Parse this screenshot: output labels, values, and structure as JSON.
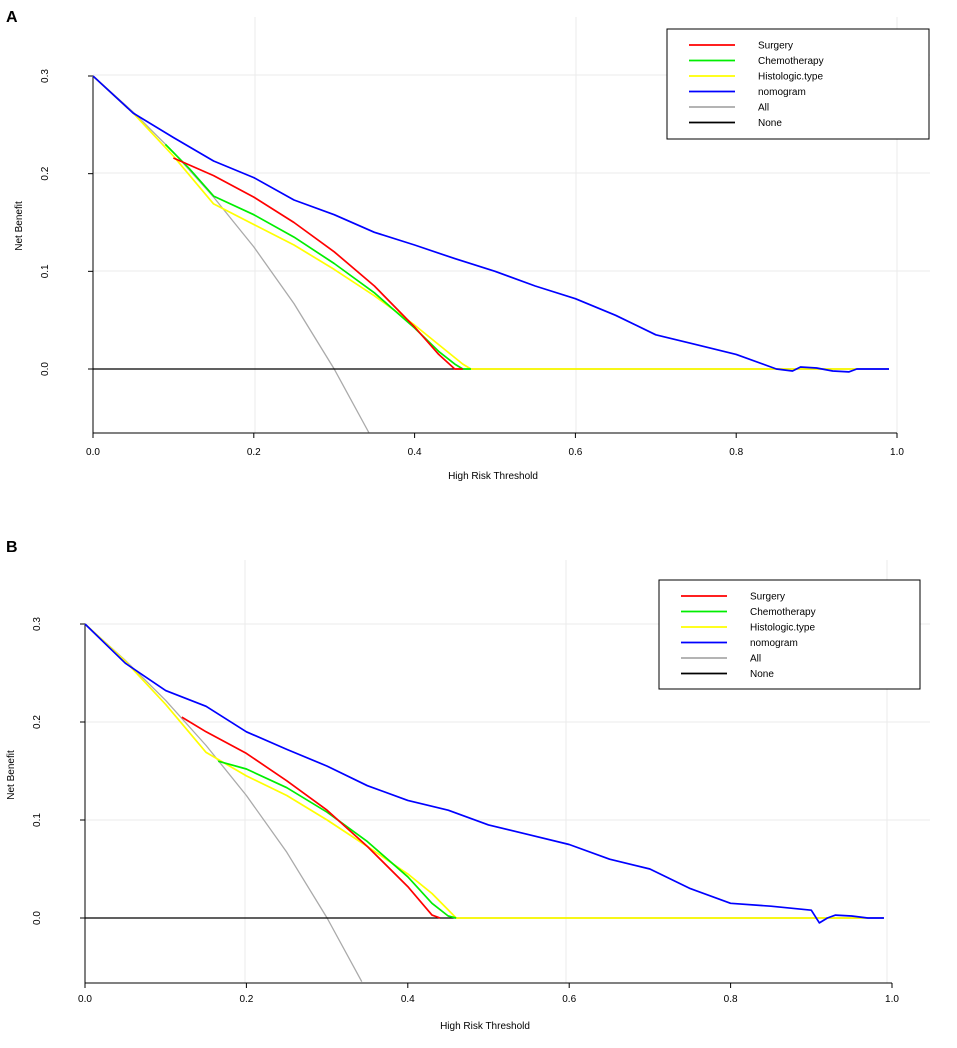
{
  "colors": {
    "Surgery": "#ff0000",
    "Chemotherapy": "#00ee00",
    "Histologic.type": "#ffff00",
    "nomogram": "#0000ff",
    "All": "#aaaaaa",
    "None": "#000000",
    "grid": "#ebebeb"
  },
  "chart_data": [
    {
      "panel": "A",
      "type": "line",
      "xlabel": "High Risk Threshold",
      "ylabel": "Net Benefit",
      "xlim": [
        0,
        1.0
      ],
      "ylim": [
        -0.065,
        0.3
      ],
      "xticks": [
        "0.0",
        "0.2",
        "0.4",
        "0.6",
        "0.8",
        "1.0"
      ],
      "yticks": [
        "0.0",
        "0.1",
        "0.2",
        "0.3"
      ],
      "legend": [
        "Surgery",
        "Chemotherapy",
        "Histologic.type",
        "nomogram",
        "All",
        "None"
      ],
      "series": [
        {
          "name": "All",
          "x": [
            0,
            0.05,
            0.1,
            0.15,
            0.2,
            0.25,
            0.3,
            0.343
          ],
          "y": [
            0.3,
            0.263,
            0.222,
            0.176,
            0.125,
            0.067,
            0.0,
            -0.065
          ]
        },
        {
          "name": "None",
          "x": [
            0,
            0.99
          ],
          "y": [
            0,
            0
          ]
        },
        {
          "name": "Histologic.type",
          "x": [
            0,
            0.05,
            0.1,
            0.15,
            0.2,
            0.25,
            0.3,
            0.35,
            0.4,
            0.43,
            0.46,
            0.47,
            0.6,
            0.8,
            0.95
          ],
          "y": [
            0.3,
            0.262,
            0.218,
            0.169,
            0.148,
            0.127,
            0.102,
            0.075,
            0.045,
            0.025,
            0.005,
            0.0,
            0.0,
            0.0,
            0.0
          ]
        },
        {
          "name": "Chemotherapy",
          "x": [
            0.09,
            0.12,
            0.15,
            0.2,
            0.25,
            0.3,
            0.35,
            0.4,
            0.43,
            0.45,
            0.46,
            0.47
          ],
          "y": [
            0.23,
            0.205,
            0.177,
            0.158,
            0.135,
            0.108,
            0.078,
            0.042,
            0.018,
            0.005,
            0.0,
            0.0
          ]
        },
        {
          "name": "Surgery",
          "x": [
            0.1,
            0.15,
            0.2,
            0.25,
            0.3,
            0.35,
            0.4,
            0.43,
            0.45,
            0.46
          ],
          "y": [
            0.216,
            0.198,
            0.176,
            0.15,
            0.12,
            0.085,
            0.043,
            0.015,
            0.0,
            0.0
          ]
        },
        {
          "name": "nomogram",
          "x": [
            0,
            0.05,
            0.1,
            0.15,
            0.2,
            0.25,
            0.3,
            0.35,
            0.4,
            0.45,
            0.5,
            0.55,
            0.6,
            0.65,
            0.7,
            0.75,
            0.8,
            0.85,
            0.87,
            0.88,
            0.9,
            0.92,
            0.94,
            0.95,
            0.97,
            0.99
          ],
          "y": [
            0.3,
            0.262,
            0.237,
            0.213,
            0.196,
            0.173,
            0.158,
            0.14,
            0.127,
            0.113,
            0.1,
            0.085,
            0.072,
            0.055,
            0.035,
            0.025,
            0.015,
            0.0,
            -0.002,
            0.002,
            0.001,
            -0.002,
            -0.003,
            0.0,
            0.0,
            0.0
          ]
        }
      ]
    },
    {
      "panel": "B",
      "type": "line",
      "xlabel": "High Risk Threshold",
      "ylabel": "Net Benefit",
      "xlim": [
        0,
        1.0
      ],
      "ylim": [
        -0.065,
        0.3
      ],
      "xticks": [
        "0.0",
        "0.2",
        "0.4",
        "0.6",
        "0.8",
        "1.0"
      ],
      "yticks": [
        "0.0",
        "0.1",
        "0.2",
        "0.3"
      ],
      "legend": [
        "Surgery",
        "Chemotherapy",
        "Histologic.type",
        "nomogram",
        "All",
        "None"
      ],
      "series": [
        {
          "name": "All",
          "x": [
            0,
            0.05,
            0.1,
            0.15,
            0.2,
            0.25,
            0.3,
            0.343
          ],
          "y": [
            0.3,
            0.263,
            0.222,
            0.176,
            0.125,
            0.067,
            0.0,
            -0.065
          ]
        },
        {
          "name": "None",
          "x": [
            0,
            0.99
          ],
          "y": [
            0,
            0
          ]
        },
        {
          "name": "Histologic.type",
          "x": [
            0,
            0.05,
            0.1,
            0.15,
            0.2,
            0.25,
            0.3,
            0.35,
            0.4,
            0.43,
            0.46,
            0.6,
            0.8,
            0.97
          ],
          "y": [
            0.3,
            0.262,
            0.218,
            0.169,
            0.145,
            0.125,
            0.1,
            0.073,
            0.045,
            0.025,
            0.0,
            0.0,
            0.0,
            0.0
          ]
        },
        {
          "name": "Chemotherapy",
          "x": [
            0.165,
            0.2,
            0.25,
            0.3,
            0.35,
            0.4,
            0.43,
            0.45,
            0.46
          ],
          "y": [
            0.16,
            0.152,
            0.133,
            0.108,
            0.078,
            0.042,
            0.015,
            0.002,
            0.0
          ]
        },
        {
          "name": "Surgery",
          "x": [
            0.12,
            0.15,
            0.2,
            0.25,
            0.3,
            0.35,
            0.4,
            0.43,
            0.44
          ],
          "y": [
            0.205,
            0.19,
            0.168,
            0.14,
            0.11,
            0.073,
            0.032,
            0.003,
            0.0
          ]
        },
        {
          "name": "nomogram",
          "x": [
            0,
            0.05,
            0.1,
            0.15,
            0.2,
            0.25,
            0.3,
            0.35,
            0.4,
            0.45,
            0.5,
            0.55,
            0.6,
            0.65,
            0.7,
            0.75,
            0.8,
            0.85,
            0.9,
            0.91,
            0.92,
            0.93,
            0.95,
            0.97,
            0.99
          ],
          "y": [
            0.3,
            0.26,
            0.232,
            0.216,
            0.19,
            0.172,
            0.155,
            0.135,
            0.12,
            0.11,
            0.095,
            0.085,
            0.075,
            0.06,
            0.05,
            0.03,
            0.015,
            0.012,
            0.008,
            -0.005,
            0.0,
            0.003,
            0.002,
            0.0,
            0.0
          ]
        }
      ]
    }
  ]
}
